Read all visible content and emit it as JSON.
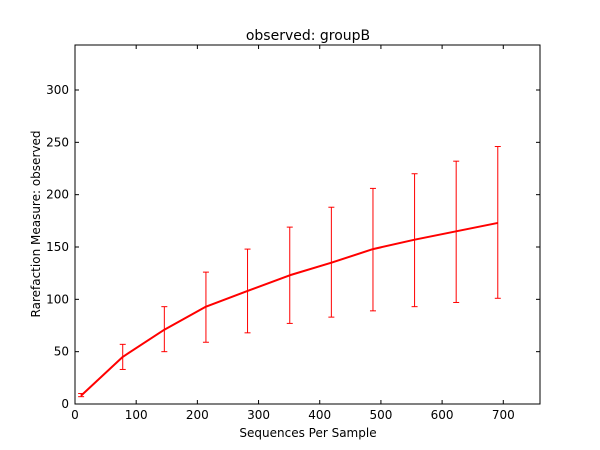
{
  "chart_data": {
    "type": "line",
    "title": "observed: groupB",
    "xlabel": "Sequences Per Sample",
    "ylabel": "Rarefaction Measure: observed",
    "xlim": [
      0,
      760
    ],
    "ylim": [
      0,
      343
    ],
    "xticks": [
      0,
      100,
      200,
      300,
      400,
      500,
      600,
      700
    ],
    "yticks": [
      0,
      50,
      100,
      150,
      200,
      250,
      300
    ],
    "grid": false,
    "line_color": "#ff0000",
    "series": [
      {
        "x": [
          10,
          78,
          146,
          214,
          282,
          351,
          419,
          487,
          555,
          623,
          691
        ],
        "y": [
          8,
          45,
          71,
          93,
          108,
          123,
          135,
          148,
          157,
          165,
          173
        ],
        "err_low": [
          7,
          33,
          50,
          59,
          68,
          77,
          83,
          89,
          93,
          97,
          101
        ],
        "err_high": [
          10,
          57,
          93,
          126,
          148,
          169,
          188,
          206,
          220,
          232,
          246
        ]
      }
    ]
  }
}
